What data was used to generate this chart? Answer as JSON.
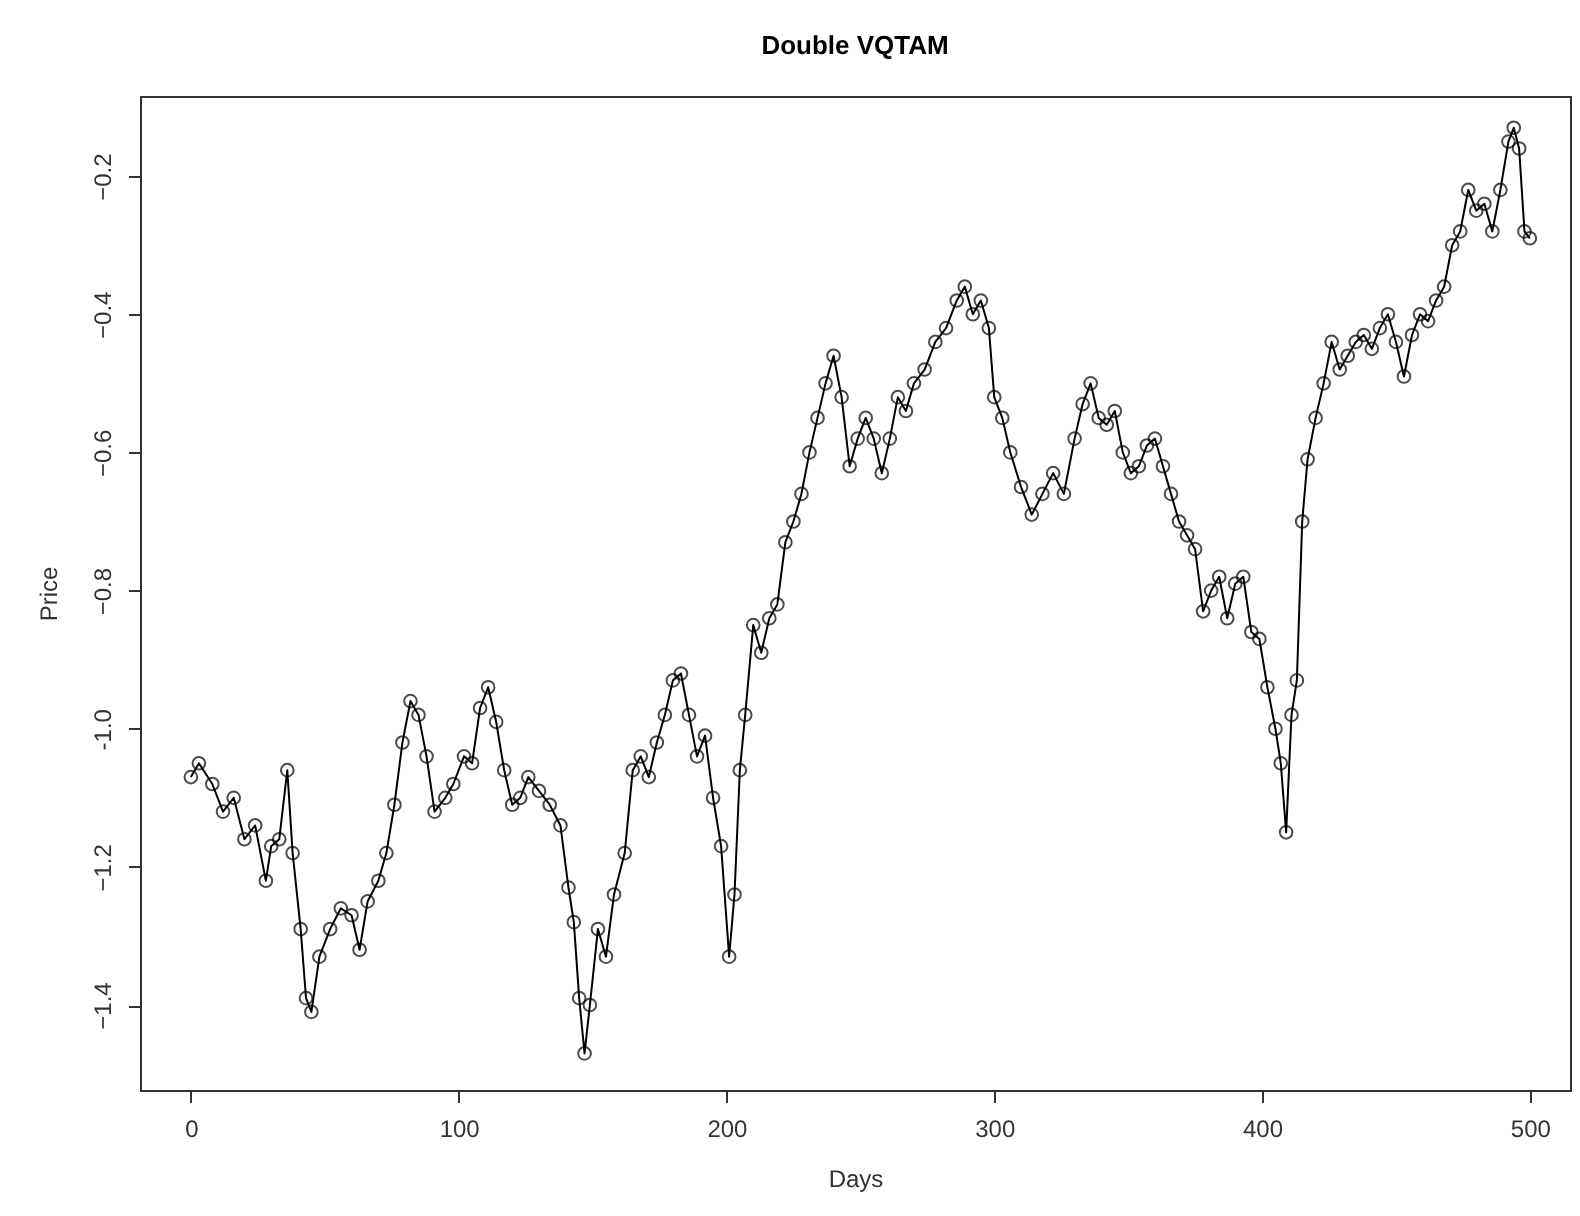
{
  "chart_data": {
    "type": "line",
    "title": "Double VQTAM",
    "xlabel": "Days",
    "ylabel": "Price",
    "marker": "circle",
    "line_style": "solid",
    "grid": false,
    "xlim": [
      -19,
      515
    ],
    "xticks": [
      0,
      100,
      200,
      300,
      400,
      500
    ],
    "ylim": [
      -1.523,
      -0.084
    ],
    "yticks": [
      -1.4,
      -1.2,
      {
        "value": -1,
        "label": "-1.0"
      },
      -0.8,
      -0.6,
      -0.4,
      -0.2
    ],
    "series": [
      {
        "color": "#000000",
        "x": [
          0,
          3,
          8,
          12,
          16,
          20,
          24,
          28,
          30,
          33,
          36,
          38,
          41,
          43,
          45,
          48,
          52,
          56,
          60,
          63,
          66,
          70,
          73,
          76,
          79,
          82,
          85,
          88,
          91,
          95,
          98,
          102,
          105,
          108,
          111,
          114,
          117,
          120,
          123,
          126,
          130,
          134,
          138,
          141,
          143,
          145,
          147,
          149,
          152,
          155,
          158,
          162,
          165,
          168,
          171,
          174,
          177,
          180,
          183,
          186,
          189,
          192,
          195,
          198,
          201,
          203,
          205,
          207,
          210,
          213,
          216,
          219,
          222,
          225,
          228,
          231,
          234,
          237,
          240,
          243,
          246,
          249,
          252,
          255,
          258,
          261,
          264,
          267,
          270,
          274,
          278,
          282,
          286,
          289,
          292,
          295,
          298,
          300,
          303,
          306,
          310,
          314,
          318,
          322,
          326,
          330,
          333,
          336,
          339,
          342,
          345,
          348,
          351,
          354,
          357,
          360,
          363,
          366,
          369,
          372,
          375,
          378,
          381,
          384,
          387,
          390,
          393,
          396,
          399,
          402,
          405,
          407,
          409,
          411,
          413,
          415,
          417,
          420,
          423,
          426,
          429,
          432,
          435,
          438,
          441,
          444,
          447,
          450,
          453,
          456,
          459,
          462,
          465,
          468,
          471,
          474,
          477,
          480,
          483,
          486,
          489,
          492,
          494,
          496,
          498,
          500
        ],
        "values": [
          -1.07,
          -1.05,
          -1.08,
          -1.12,
          -1.1,
          -1.16,
          -1.14,
          -1.22,
          -1.17,
          -1.16,
          -1.06,
          -1.18,
          -1.29,
          -1.39,
          -1.41,
          -1.33,
          -1.29,
          -1.26,
          -1.27,
          -1.32,
          -1.25,
          -1.22,
          -1.18,
          -1.11,
          -1.02,
          -0.96,
          -0.98,
          -1.04,
          -1.12,
          -1.1,
          -1.08,
          -1.04,
          -1.05,
          -0.97,
          -0.94,
          -0.99,
          -1.06,
          -1.11,
          -1.1,
          -1.07,
          -1.09,
          -1.11,
          -1.14,
          -1.23,
          -1.28,
          -1.39,
          -1.47,
          -1.4,
          -1.29,
          -1.33,
          -1.24,
          -1.18,
          -1.06,
          -1.04,
          -1.07,
          -1.02,
          -0.98,
          -0.93,
          -0.92,
          -0.98,
          -1.04,
          -1.01,
          -1.1,
          -1.17,
          -1.33,
          -1.24,
          -1.06,
          -0.98,
          -0.85,
          -0.89,
          -0.84,
          -0.82,
          -0.73,
          -0.7,
          -0.66,
          -0.6,
          -0.55,
          -0.5,
          -0.46,
          -0.52,
          -0.62,
          -0.58,
          -0.55,
          -0.58,
          -0.63,
          -0.58,
          -0.52,
          -0.54,
          -0.5,
          -0.48,
          -0.44,
          -0.42,
          -0.38,
          -0.36,
          -0.4,
          -0.38,
          -0.42,
          -0.52,
          -0.55,
          -0.6,
          -0.65,
          -0.69,
          -0.66,
          -0.63,
          -0.66,
          -0.58,
          -0.53,
          -0.5,
          -0.55,
          -0.56,
          -0.54,
          -0.6,
          -0.63,
          -0.62,
          -0.59,
          -0.58,
          -0.62,
          -0.66,
          -0.7,
          -0.72,
          -0.74,
          -0.83,
          -0.8,
          -0.78,
          -0.84,
          -0.79,
          -0.78,
          -0.86,
          -0.87,
          -0.94,
          -1.0,
          -1.05,
          -1.15,
          -0.98,
          -0.93,
          -0.7,
          -0.61,
          -0.55,
          -0.5,
          -0.44,
          -0.48,
          -0.46,
          -0.44,
          -0.43,
          -0.45,
          -0.42,
          -0.4,
          -0.44,
          -0.49,
          -0.43,
          -0.4,
          -0.41,
          -0.38,
          -0.36,
          -0.3,
          -0.28,
          -0.22,
          -0.25,
          -0.24,
          -0.28,
          -0.22,
          -0.15,
          -0.13,
          -0.16,
          -0.28,
          -0.29
        ]
      }
    ]
  }
}
